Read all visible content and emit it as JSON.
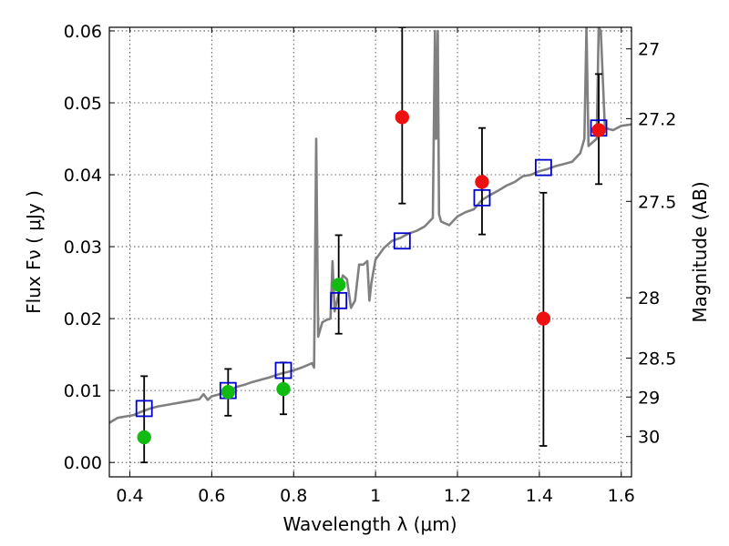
{
  "chart_data": {
    "type": "scatter",
    "xlabel": "Wavelength  λ (μm)",
    "ylabel": "Flux  Fν  ( μJy )",
    "ylabel_right": "Magnitude (AB)",
    "xlim": [
      0.35,
      1.625
    ],
    "ylim": [
      -0.002,
      0.0605
    ],
    "grid": true,
    "x_ticks": [
      0.4,
      0.6,
      0.8,
      1.0,
      1.2,
      1.4,
      1.6
    ],
    "x_tick_labels": [
      "0.4",
      "0.6",
      "0.8",
      "1",
      "1.2",
      "1.4",
      "1.6"
    ],
    "y_ticks": [
      0.0,
      0.01,
      0.02,
      0.03,
      0.04,
      0.05,
      0.06
    ],
    "y_tick_labels": [
      "0.00",
      "0.01",
      "0.02",
      "0.03",
      "0.04",
      "0.05",
      "0.06"
    ],
    "right_ticks": [
      {
        "label": "27",
        "flux": 0.0575
      },
      {
        "label": "27.2",
        "flux": 0.0478
      },
      {
        "label": "27.5",
        "flux": 0.0363
      },
      {
        "label": "28",
        "flux": 0.0229
      },
      {
        "label": "28.5",
        "flux": 0.0145
      },
      {
        "label": "29",
        "flux": 0.0091
      },
      {
        "label": "30",
        "flux": 0.0036
      }
    ],
    "series": [
      {
        "marker": "circle",
        "color": "#11bb11",
        "points": [
          {
            "x": 0.435,
            "y": 0.0035,
            "err_lo": 0.0035,
            "err_hi": 0.0085
          },
          {
            "x": 0.64,
            "y": 0.0098,
            "err_lo": 0.0033,
            "err_hi": 0.0032
          },
          {
            "x": 0.775,
            "y": 0.0102,
            "err_lo": 0.0035,
            "err_hi": 0.0037
          },
          {
            "x": 0.91,
            "y": 0.0247,
            "err_lo": 0.0068,
            "err_hi": 0.0069
          }
        ]
      },
      {
        "marker": "circle",
        "color": "#ee1111",
        "points": [
          {
            "x": 1.065,
            "y": 0.048,
            "err_lo": 0.012,
            "err_hi": 0.0125
          },
          {
            "x": 1.26,
            "y": 0.039,
            "err_lo": 0.0073,
            "err_hi": 0.0075
          },
          {
            "x": 1.41,
            "y": 0.02,
            "err_lo": 0.0177,
            "err_hi": 0.0175
          },
          {
            "x": 1.545,
            "y": 0.0462,
            "err_lo": 0.0075,
            "err_hi": 0.0078
          }
        ]
      },
      {
        "marker": "open-square",
        "color": "#0000cc",
        "points": [
          {
            "x": 0.435,
            "y": 0.0075
          },
          {
            "x": 0.64,
            "y": 0.01
          },
          {
            "x": 0.775,
            "y": 0.0128
          },
          {
            "x": 0.91,
            "y": 0.0225
          },
          {
            "x": 1.065,
            "y": 0.0308
          },
          {
            "x": 1.26,
            "y": 0.0368
          },
          {
            "x": 1.41,
            "y": 0.041
          },
          {
            "x": 1.545,
            "y": 0.0465
          }
        ]
      },
      {
        "marker": "line",
        "color": "#808080",
        "points": [
          [
            0.35,
            0.0055
          ],
          [
            0.37,
            0.0062
          ],
          [
            0.39,
            0.0064
          ],
          [
            0.41,
            0.0066
          ],
          [
            0.43,
            0.0071
          ],
          [
            0.45,
            0.0075
          ],
          [
            0.47,
            0.0078
          ],
          [
            0.49,
            0.008
          ],
          [
            0.51,
            0.0082
          ],
          [
            0.53,
            0.0084
          ],
          [
            0.55,
            0.0086
          ],
          [
            0.57,
            0.0088
          ],
          [
            0.58,
            0.0095
          ],
          [
            0.59,
            0.0087
          ],
          [
            0.6,
            0.0092
          ],
          [
            0.62,
            0.0095
          ],
          [
            0.64,
            0.0098
          ],
          [
            0.66,
            0.0105
          ],
          [
            0.68,
            0.0108
          ],
          [
            0.7,
            0.0112
          ],
          [
            0.72,
            0.0115
          ],
          [
            0.74,
            0.0118
          ],
          [
            0.76,
            0.0122
          ],
          [
            0.78,
            0.0125
          ],
          [
            0.8,
            0.0128
          ],
          [
            0.82,
            0.0132
          ],
          [
            0.845,
            0.0138
          ],
          [
            0.85,
            0.0132
          ],
          [
            0.855,
            0.045
          ],
          [
            0.86,
            0.0175
          ],
          [
            0.87,
            0.0195
          ],
          [
            0.88,
            0.0198
          ],
          [
            0.89,
            0.02
          ],
          [
            0.895,
            0.028
          ],
          [
            0.9,
            0.021
          ],
          [
            0.91,
            0.0235
          ],
          [
            0.92,
            0.026
          ],
          [
            0.93,
            0.0255
          ],
          [
            0.94,
            0.0215
          ],
          [
            0.95,
            0.0225
          ],
          [
            0.96,
            0.0275
          ],
          [
            0.97,
            0.0275
          ],
          [
            0.98,
            0.028
          ],
          [
            0.985,
            0.0225
          ],
          [
            0.99,
            0.025
          ],
          [
            1.0,
            0.0282
          ],
          [
            1.02,
            0.0298
          ],
          [
            1.04,
            0.0308
          ],
          [
            1.06,
            0.0312
          ],
          [
            1.08,
            0.0318
          ],
          [
            1.1,
            0.0322
          ],
          [
            1.12,
            0.0328
          ],
          [
            1.14,
            0.034
          ],
          [
            1.145,
            0.06
          ],
          [
            1.148,
            0.045
          ],
          [
            1.152,
            0.06
          ],
          [
            1.155,
            0.0345
          ],
          [
            1.16,
            0.0335
          ],
          [
            1.18,
            0.033
          ],
          [
            1.2,
            0.0342
          ],
          [
            1.22,
            0.0348
          ],
          [
            1.24,
            0.0352
          ],
          [
            1.26,
            0.0365
          ],
          [
            1.28,
            0.0372
          ],
          [
            1.3,
            0.0378
          ],
          [
            1.32,
            0.0385
          ],
          [
            1.34,
            0.039
          ],
          [
            1.36,
            0.0398
          ],
          [
            1.38,
            0.04
          ],
          [
            1.4,
            0.0405
          ],
          [
            1.42,
            0.0408
          ],
          [
            1.44,
            0.0412
          ],
          [
            1.46,
            0.0415
          ],
          [
            1.48,
            0.0418
          ],
          [
            1.5,
            0.043
          ],
          [
            1.51,
            0.045
          ],
          [
            1.515,
            0.0605
          ],
          [
            1.52,
            0.044
          ],
          [
            1.54,
            0.045
          ],
          [
            1.545,
            0.0605
          ],
          [
            1.55,
            0.06
          ],
          [
            1.56,
            0.0465
          ],
          [
            1.58,
            0.0462
          ],
          [
            1.6,
            0.0468
          ],
          [
            1.625,
            0.047
          ]
        ]
      }
    ]
  }
}
